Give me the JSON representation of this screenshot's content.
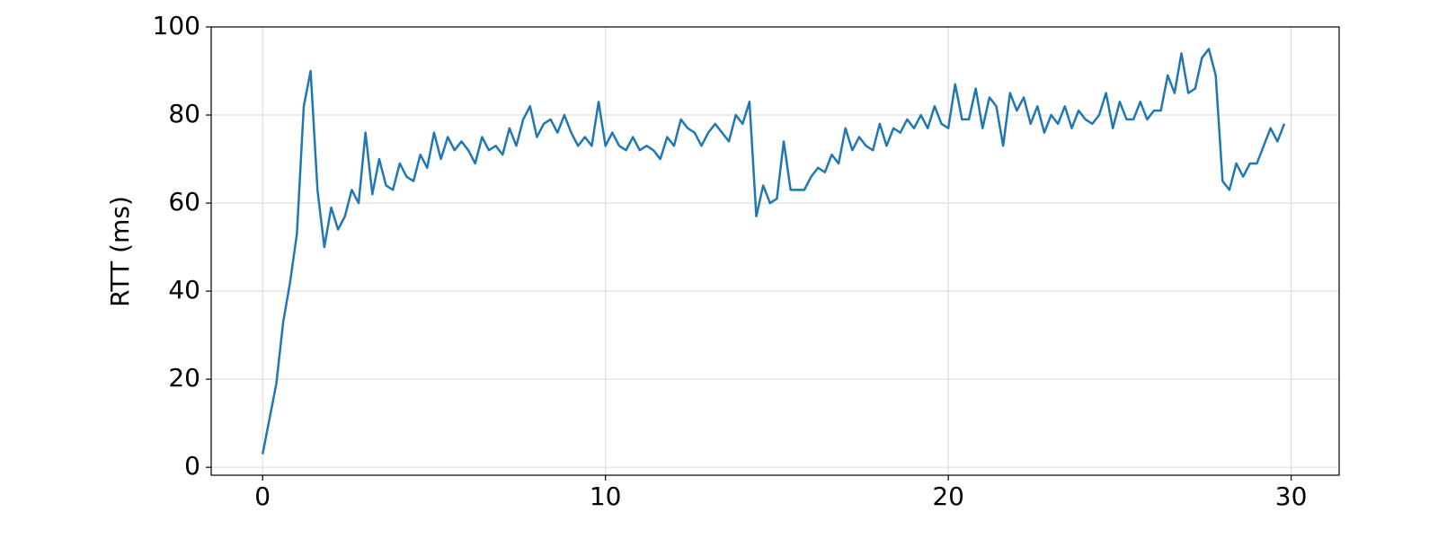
{
  "chart_data": {
    "type": "line",
    "ylabel": "RTT (ms)",
    "x": [
      0,
      0.2,
      0.4,
      0.6,
      0.8,
      1.0,
      1.2,
      1.4,
      1.6,
      1.8,
      2.0,
      2.2,
      2.4,
      2.6,
      2.8,
      3.0,
      3.2,
      3.4,
      3.6,
      3.8,
      4.0,
      4.2,
      4.4,
      4.6,
      4.8,
      5.0,
      5.2,
      5.4,
      5.6,
      5.8,
      6.0,
      6.2,
      6.4,
      6.6,
      6.8,
      7.0,
      7.2,
      7.4,
      7.6,
      7.8,
      8.0,
      8.2,
      8.4,
      8.6,
      8.8,
      9.0,
      9.2,
      9.4,
      9.6,
      9.8,
      10.0,
      10.2,
      10.4,
      10.6,
      10.8,
      11.0,
      11.2,
      11.4,
      11.6,
      11.8,
      12.0,
      12.2,
      12.4,
      12.6,
      12.8,
      13.0,
      13.2,
      13.4,
      13.6,
      13.8,
      14.0,
      14.2,
      14.4,
      14.6,
      14.8,
      15.0,
      15.2,
      15.4,
      15.6,
      15.8,
      16.0,
      16.2,
      16.4,
      16.6,
      16.8,
      17.0,
      17.2,
      17.4,
      17.6,
      17.8,
      18.0,
      18.2,
      18.4,
      18.6,
      18.8,
      19.0,
      19.2,
      19.4,
      19.6,
      19.8,
      20.0,
      20.2,
      20.4,
      20.6,
      20.8,
      21.0,
      21.2,
      21.4,
      21.6,
      21.8,
      22.0,
      22.2,
      22.4,
      22.6,
      22.8,
      23.0,
      23.2,
      23.4,
      23.6,
      23.8,
      24.0,
      24.2,
      24.4,
      24.6,
      24.8,
      25.0,
      25.2,
      25.4,
      25.6,
      25.8,
      26.0,
      26.2,
      26.4,
      26.6,
      26.8,
      27.0,
      27.2,
      27.4,
      27.6,
      27.8,
      28.0,
      28.2,
      28.4,
      28.6,
      28.8,
      29.0,
      29.2,
      29.4,
      29.6,
      29.8
    ],
    "series": [
      {
        "color": "#1f77b4",
        "values": [
          3,
          11,
          19,
          33,
          42,
          53,
          82,
          90,
          63,
          50,
          59,
          54,
          57,
          63,
          60,
          76,
          62,
          70,
          64,
          63,
          69,
          66,
          65,
          71,
          68,
          76,
          70,
          75,
          72,
          74,
          72,
          69,
          75,
          72,
          73,
          71,
          77,
          73,
          79,
          82,
          75,
          78,
          79,
          76,
          80,
          76,
          73,
          75,
          73,
          83,
          73,
          76,
          73,
          72,
          75,
          72,
          73,
          72,
          70,
          75,
          73,
          79,
          77,
          76,
          73,
          76,
          78,
          76,
          74,
          80,
          78,
          83,
          57,
          64,
          60,
          61,
          74,
          63,
          63,
          63,
          66,
          68,
          67,
          71,
          69,
          77,
          72,
          75,
          73,
          72,
          78,
          73,
          77,
          76,
          79,
          77,
          80,
          77,
          82,
          78,
          77,
          87,
          79,
          79,
          86,
          77,
          84,
          82,
          73,
          85,
          81,
          84,
          78,
          82,
          76,
          80,
          78,
          82,
          77,
          81,
          79,
          78,
          80,
          85,
          77,
          83,
          79,
          79,
          83,
          79,
          81,
          81,
          89,
          85,
          94,
          85,
          86,
          93,
          95,
          89,
          65,
          63,
          69,
          66,
          69,
          69,
          73,
          77,
          74,
          78
        ]
      }
    ],
    "xlim": [
      -1.5,
      31.4
    ],
    "ylim": [
      -1.8,
      100
    ],
    "xticks": [
      0,
      10,
      20,
      30
    ],
    "yticks": [
      0,
      20,
      40,
      60,
      80,
      100
    ],
    "grid": true
  }
}
